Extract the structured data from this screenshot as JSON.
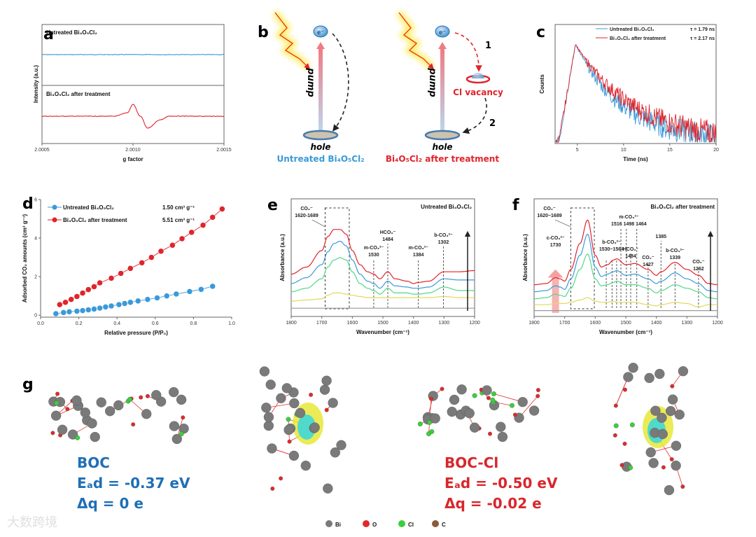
{
  "colors": {
    "blue": "#3a9ad9",
    "red": "#e0242b",
    "green": "#4fd88a",
    "yellow": "#e3d85a",
    "gray": "#9a9a9a",
    "boc_blue": "#1f6fb5",
    "boc_red": "#d8262c"
  },
  "panel_labels": {
    "a": "a",
    "b": "b",
    "c": "c",
    "d": "d",
    "e": "e",
    "f": "f",
    "g": "g"
  },
  "chart_data": [
    {
      "id": "a",
      "type": "line",
      "title": "",
      "xlabel": "g factor",
      "ylabel": "Intensity (a.u.)",
      "xlim": [
        2.0005,
        2.0015
      ],
      "xticks": [
        "2.0005",
        "2.0010",
        "2.0015"
      ],
      "xtick_values": [
        2.0005,
        2.001,
        2.0015
      ],
      "series": [
        {
          "name": "Untreated Bi₄O₅Cl₂",
          "x": [
            2.0005,
            2.0015
          ],
          "y": [
            0,
            0
          ]
        },
        {
          "name": "Bi₄O₅Cl₂ after treatment",
          "x": [
            2.0005,
            2.0009,
            2.00097,
            2.001,
            2.00104,
            2.00108,
            2.00115,
            2.0012,
            2.0015
          ],
          "y": [
            0,
            0,
            0.3,
            1,
            0,
            -1,
            -0.3,
            0,
            0
          ]
        }
      ]
    },
    {
      "id": "c",
      "type": "line",
      "xlabel": "Time (ns)",
      "ylabel": "Counts",
      "xlim": [
        2.6,
        20
      ],
      "xticks": [
        "5",
        "10",
        "15",
        "20"
      ],
      "xtick_values": [
        5,
        10,
        15,
        20
      ],
      "peak_time_ns": 4.8,
      "series": [
        {
          "name": "Untreated Bi₄O₅Cl₂",
          "tau_label": "τ = 1.79 ns",
          "tau_ns": 1.79
        },
        {
          "name": "Bi₄O₅Cl₂ after treatment",
          "tau_label": "τ = 2.17 ns",
          "tau_ns": 2.17
        }
      ]
    },
    {
      "id": "d",
      "type": "scatter",
      "xlabel": "Relative pressure (P/P₀)",
      "ylabel": "Adsorbed CO₂ amounts (cm³ g⁻¹)",
      "xlim": [
        0,
        1
      ],
      "ylim": [
        -0.1,
        6
      ],
      "xticks": [
        "0.0",
        "0.2",
        "0.4",
        "0.6",
        "0.8",
        "1.0"
      ],
      "xtick_values": [
        0,
        0.2,
        0.4,
        0.6,
        0.8,
        1.0
      ],
      "yticks": [
        "0",
        "2",
        "4",
        "6"
      ],
      "ytick_values": [
        0,
        2,
        4,
        6
      ],
      "series": [
        {
          "name": "Untreated Bi₄O₅Cl₂",
          "value_label": "1.50 cm³ g⁻¹",
          "x": [
            0.08,
            0.12,
            0.15,
            0.19,
            0.22,
            0.25,
            0.28,
            0.31,
            0.34,
            0.37,
            0.41,
            0.44,
            0.47,
            0.51,
            0.56,
            0.61,
            0.66,
            0.71,
            0.78,
            0.84,
            0.9
          ],
          "y": [
            0.08,
            0.14,
            0.18,
            0.21,
            0.24,
            0.28,
            0.32,
            0.37,
            0.43,
            0.48,
            0.55,
            0.61,
            0.67,
            0.74,
            0.82,
            0.9,
            1.0,
            1.1,
            1.23,
            1.34,
            1.5
          ]
        },
        {
          "name": "Bi₄O₅Cl₂ after treatment",
          "value_label": "5.51 cm³ g⁻¹",
          "x": [
            0.1,
            0.13,
            0.16,
            0.19,
            0.22,
            0.25,
            0.28,
            0.31,
            0.37,
            0.42,
            0.47,
            0.53,
            0.58,
            0.63,
            0.69,
            0.74,
            0.79,
            0.85,
            0.9,
            0.95
          ],
          "y": [
            0.55,
            0.67,
            0.82,
            0.97,
            1.15,
            1.33,
            1.48,
            1.68,
            1.92,
            2.17,
            2.43,
            2.72,
            3.0,
            3.32,
            3.63,
            3.97,
            4.3,
            4.67,
            5.08,
            5.51
          ]
        }
      ]
    },
    {
      "id": "e",
      "type": "line",
      "title": "Untreated Bi₄O₅Cl₂",
      "xlabel": "Wavenumber (cm⁻¹)",
      "ylabel": "Absorbance (a.u.)",
      "xlim": [
        1800,
        1200
      ],
      "ylim": [
        0,
        1
      ],
      "xticks": [
        "1800",
        "1700",
        "1600",
        "1500",
        "1400",
        "1300",
        "1200"
      ],
      "xtick_values": [
        1800,
        1700,
        1600,
        1500,
        1400,
        1300,
        1200
      ],
      "x": [
        1800,
        1750,
        1700,
        1680,
        1660,
        1640,
        1620,
        1600,
        1575,
        1550,
        1530,
        1510,
        1484,
        1460,
        1420,
        1400,
        1384,
        1350,
        1300,
        1250,
        1200
      ],
      "series": [
        {
          "color": "red",
          "y": [
            0.36,
            0.42,
            0.56,
            0.68,
            0.74,
            0.74,
            0.7,
            0.56,
            0.44,
            0.38,
            0.36,
            0.32,
            0.38,
            0.32,
            0.3,
            0.28,
            0.29,
            0.3,
            0.38,
            0.38,
            0.39
          ]
        },
        {
          "color": "blue",
          "y": [
            0.28,
            0.33,
            0.44,
            0.55,
            0.62,
            0.64,
            0.6,
            0.48,
            0.36,
            0.3,
            0.28,
            0.24,
            0.3,
            0.26,
            0.25,
            0.24,
            0.24,
            0.25,
            0.32,
            0.31,
            0.31
          ]
        },
        {
          "color": "green",
          "y": [
            0.21,
            0.24,
            0.32,
            0.42,
            0.48,
            0.5,
            0.48,
            0.38,
            0.28,
            0.24,
            0.22,
            0.19,
            0.24,
            0.2,
            0.2,
            0.19,
            0.19,
            0.2,
            0.25,
            0.22,
            0.22
          ]
        },
        {
          "color": "yellow",
          "y": [
            0.13,
            0.14,
            0.15,
            0.18,
            0.2,
            0.2,
            0.19,
            0.18,
            0.17,
            0.16,
            0.16,
            0.16,
            0.16,
            0.16,
            0.16,
            0.16,
            0.16,
            0.16,
            0.17,
            0.16,
            0.16
          ]
        },
        {
          "color": "gray",
          "y": [
            0.07,
            0.07,
            0.07,
            0.07,
            0.07,
            0.07,
            0.07,
            0.07,
            0.07,
            0.07,
            0.07,
            0.07,
            0.07,
            0.07,
            0.07,
            0.07,
            0.07,
            0.07,
            0.07,
            0.07,
            0.07
          ]
        }
      ],
      "box_range": [
        1689,
        1610
      ],
      "box_label": [
        "CO₂⁻",
        "1620-1689"
      ],
      "annotations": [
        {
          "species": "m-CO₃²⁻",
          "label": "1530",
          "x": 1530
        },
        {
          "species": "HCO₃⁻",
          "label": "1484",
          "x": 1484
        },
        {
          "species": "m-CO₃²⁻",
          "label": "1384",
          "x": 1384
        },
        {
          "species": "b-CO₃²⁻",
          "label": "1302",
          "x": 1302
        }
      ]
    },
    {
      "id": "f",
      "type": "line",
      "title": "Bi₄O₅Cl₂ after treatment",
      "xlabel": "Wavenumber (cm⁻¹)",
      "ylabel": "Absorbance (a.u.)",
      "xlim": [
        1800,
        1200
      ],
      "ylim": [
        0,
        1
      ],
      "xticks": [
        "1800",
        "1700",
        "1600",
        "1500",
        "1400",
        "1300",
        "1200"
      ],
      "xtick_values": [
        1800,
        1700,
        1600,
        1500,
        1400,
        1300,
        1200
      ],
      "x": [
        1800,
        1760,
        1730,
        1715,
        1700,
        1680,
        1650,
        1625,
        1600,
        1580,
        1560,
        1540,
        1530,
        1500,
        1470,
        1427,
        1400,
        1385,
        1339,
        1300,
        1262,
        1230,
        1200
      ],
      "series": [
        {
          "color": "red",
          "y": [
            0.27,
            0.28,
            0.33,
            0.32,
            0.3,
            0.4,
            0.62,
            0.82,
            0.52,
            0.42,
            0.44,
            0.48,
            0.49,
            0.44,
            0.45,
            0.4,
            0.35,
            0.38,
            0.46,
            0.4,
            0.35,
            0.28,
            0.27
          ]
        },
        {
          "color": "blue",
          "y": [
            0.21,
            0.22,
            0.26,
            0.25,
            0.23,
            0.32,
            0.52,
            0.7,
            0.42,
            0.34,
            0.36,
            0.38,
            0.39,
            0.35,
            0.36,
            0.32,
            0.28,
            0.3,
            0.37,
            0.32,
            0.28,
            0.22,
            0.21
          ]
        },
        {
          "color": "green",
          "y": [
            0.15,
            0.16,
            0.19,
            0.18,
            0.17,
            0.24,
            0.4,
            0.53,
            0.32,
            0.26,
            0.27,
            0.29,
            0.3,
            0.27,
            0.27,
            0.24,
            0.2,
            0.22,
            0.27,
            0.24,
            0.21,
            0.16,
            0.15
          ]
        },
        {
          "color": "yellow",
          "y": [
            0.1,
            0.1,
            0.11,
            0.11,
            0.11,
            0.12,
            0.14,
            0.16,
            0.13,
            0.12,
            0.12,
            0.13,
            0.12,
            0.12,
            0.12,
            0.1,
            0.09,
            0.1,
            0.12,
            0.11,
            0.08,
            0.1,
            0.1
          ]
        },
        {
          "color": "gray",
          "y": [
            0.05,
            0.05,
            0.05,
            0.05,
            0.05,
            0.05,
            0.05,
            0.05,
            0.05,
            0.05,
            0.05,
            0.05,
            0.05,
            0.05,
            0.05,
            0.05,
            0.05,
            0.05,
            0.05,
            0.05,
            0.05,
            0.05,
            0.05
          ]
        }
      ],
      "box_range": [
        1680,
        1603
      ],
      "box_label": [
        "CO₂⁻",
        "1620~1689"
      ],
      "dashed_lines": [
        1564,
        1545,
        1530,
        1516,
        1498,
        1484,
        1464,
        1427,
        1385,
        1339,
        1262
      ],
      "annotations": [
        {
          "species": "c-CO₃²⁻",
          "label": "1730",
          "x": 1730,
          "highlight": true
        },
        {
          "species": "b-CO₃²⁻",
          "label": "1530~1564",
          "x": 1547
        },
        {
          "species": "m-CO₃²⁻",
          "label": "1516  1498  1464",
          "x": 1490
        },
        {
          "species": "",
          "label": "1385",
          "x": 1385
        },
        {
          "species": "HCO₃⁻",
          "label": "1484",
          "x": 1484
        },
        {
          "species": "CO₂⁻",
          "label": "1427",
          "x": 1427
        },
        {
          "species": "b-CO₃²⁻",
          "label": "1339",
          "x": 1339
        },
        {
          "species": "CO₂⁻",
          "label": "1262",
          "x": 1262
        }
      ]
    }
  ],
  "diagram_b": {
    "electron": "e⁻",
    "pump": "pump",
    "hole": "hole",
    "cl_vacancy": "Cl vacancy",
    "step1": "1",
    "step2": "2",
    "left_caption": "Untreated Bi₄O₅Cl₂",
    "right_caption": "Bi₄O₅Cl₂ after treatment"
  },
  "panel_g": {
    "boc": {
      "name": "BOC",
      "ead": "Eₐd = -0.37 eV",
      "dq": "Δq = 0 e"
    },
    "boc_cl": {
      "name": "BOC-Cl",
      "ead": "Eₐd = -0.50 eV",
      "dq": "Δq = -0.02 e"
    },
    "legend": [
      {
        "label": "Bi",
        "color": "#7a7a7a"
      },
      {
        "label": "O",
        "color": "#e02a2a"
      },
      {
        "label": "Cl",
        "color": "#3ccf3c"
      },
      {
        "label": "C",
        "color": "#8a5a3a"
      }
    ]
  },
  "watermark": "大数跨境"
}
